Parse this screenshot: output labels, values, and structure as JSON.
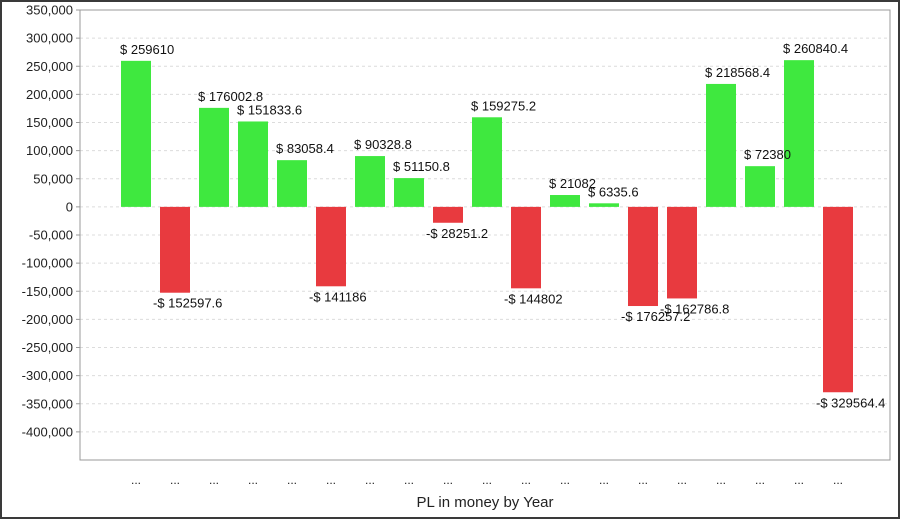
{
  "chart_data": {
    "type": "bar",
    "title": "",
    "xlabel": "PL in money by Year",
    "ylabel": "",
    "ylim": [
      -450000,
      350000
    ],
    "yticks": [
      350000,
      300000,
      250000,
      200000,
      150000,
      100000,
      50000,
      0,
      -50000,
      -100000,
      -150000,
      -200000,
      -250000,
      -300000,
      -350000,
      -400000
    ],
    "ytick_labels": [
      "350,000",
      "300,000",
      "250,000",
      "200,000",
      "150,000",
      "100,000",
      "50,000",
      "0",
      "-50,000",
      "-100,000",
      "-150,000",
      "-200,000",
      "-250,000",
      "-300,000",
      "-350,000",
      "-400,000"
    ],
    "grid": true,
    "legend": "none",
    "positive_color": "#3fe83f",
    "negative_color": "#e83a3f",
    "categories": [
      "...",
      "...",
      "...",
      "...",
      "...",
      "...",
      "...",
      "...",
      "...",
      "...",
      "...",
      "...",
      "...",
      "...",
      "...",
      "...",
      "...",
      "...",
      "..."
    ],
    "values": [
      259610,
      -152597.6,
      176002.8,
      151833.6,
      83058.4,
      -141186,
      90328.8,
      51150.8,
      -28251.2,
      159275.2,
      -144802,
      21082,
      6335.6,
      -176257.2,
      -162786.8,
      218568.4,
      72380,
      260840.4,
      -329564.4
    ],
    "data_labels": [
      "$ 259610",
      "-$ 152597.6",
      "$ 176002.8",
      "$ 151833.6",
      "$ 83058.4",
      "-$ 141186",
      "$ 90328.8",
      "$ 51150.8",
      "-$ 28251.2",
      "$ 159275.2",
      "-$ 144802",
      "$ 21082",
      "$ 6335.6",
      "-$ 176257.2",
      "-$ 162786.8",
      "$ 218568.4",
      "$ 72380",
      "$ 260840.4",
      "-$ 329564.4"
    ]
  }
}
